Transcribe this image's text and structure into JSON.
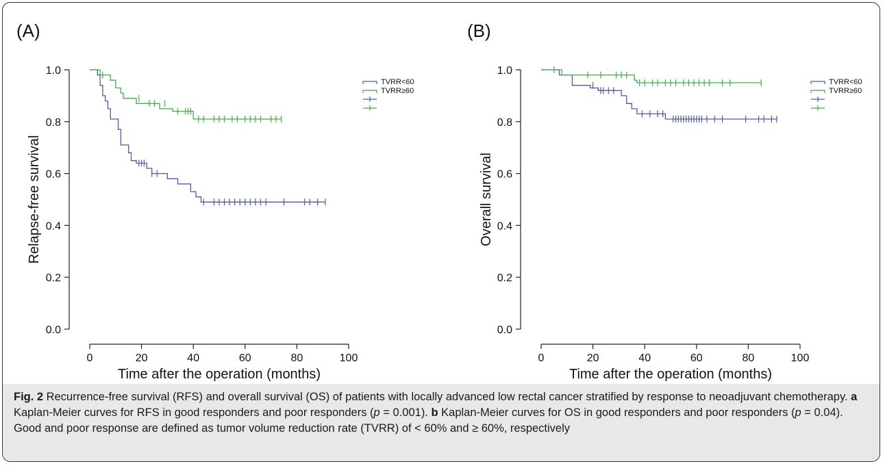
{
  "figure": {
    "caption": {
      "fig_label": "Fig. 2",
      "part1": " Recurrence-free survival (RFS) and overall survival (OS) of patients with locally advanced low rectal cancer stratified by response to neoadjuvant chemotherapy. ",
      "a_label": "a",
      "part2": " Kaplan-Meier curves for RFS in good responders and poor responders (",
      "p_sym1": "p",
      "p_val1": " = 0.001). ",
      "b_label": "b",
      "part3": " Kaplan-Meier curves for OS in good responders and poor responders (",
      "p_sym2": "p",
      "p_val2": " = 0.04). Good and poor response are defined as tumor volume reduction rate (TVRR) of < 60% and ≥ 60%, respectively"
    }
  },
  "colors": {
    "blue": "#4a5aa8",
    "green": "#3cb043",
    "axis": "#222222"
  },
  "chart_data": [
    {
      "type": "line",
      "panel_label": "(A)",
      "title": "",
      "xlabel": "Time after the operation (months)",
      "ylabel": "Relapse-free survival",
      "xlim": [
        0,
        100
      ],
      "ylim": [
        0,
        1
      ],
      "x_ticks": [
        0,
        20,
        40,
        60,
        80,
        100
      ],
      "y_ticks": [
        "0.0",
        "0.2",
        "0.4",
        "0.6",
        "0.8",
        "1.0"
      ],
      "grid": false,
      "legend": {
        "placement": "top-right",
        "entries": [
          "TVRR<60",
          "TVRR≥60",
          "",
          ""
        ]
      },
      "series": [
        {
          "name": "TVRR<60",
          "color": "blue",
          "steps": [
            [
              0,
              1.0
            ],
            [
              3,
              1.0
            ],
            [
              3,
              0.98
            ],
            [
              4,
              0.98
            ],
            [
              4,
              0.94
            ],
            [
              5,
              0.94
            ],
            [
              5,
              0.9
            ],
            [
              6,
              0.9
            ],
            [
              6,
              0.88
            ],
            [
              7,
              0.88
            ],
            [
              7,
              0.85
            ],
            [
              8,
              0.85
            ],
            [
              8,
              0.81
            ],
            [
              11,
              0.81
            ],
            [
              11,
              0.77
            ],
            [
              12,
              0.77
            ],
            [
              12,
              0.71
            ],
            [
              15,
              0.71
            ],
            [
              15,
              0.68
            ],
            [
              16,
              0.68
            ],
            [
              16,
              0.65
            ],
            [
              18,
              0.65
            ],
            [
              18,
              0.64
            ],
            [
              22,
              0.64
            ],
            [
              22,
              0.62
            ],
            [
              24,
              0.62
            ],
            [
              24,
              0.6
            ],
            [
              30,
              0.6
            ],
            [
              30,
              0.58
            ],
            [
              34,
              0.58
            ],
            [
              34,
              0.56
            ],
            [
              39,
              0.56
            ],
            [
              39,
              0.53
            ],
            [
              41,
              0.53
            ],
            [
              41,
              0.51
            ],
            [
              43,
              0.51
            ],
            [
              43,
              0.49
            ],
            [
              91,
              0.49
            ]
          ],
          "censors": [
            [
              19,
              0.64
            ],
            [
              20,
              0.64
            ],
            [
              21,
              0.64
            ],
            [
              24,
              0.6
            ],
            [
              26,
              0.6
            ],
            [
              44,
              0.49
            ],
            [
              48,
              0.49
            ],
            [
              50,
              0.49
            ],
            [
              52,
              0.49
            ],
            [
              54,
              0.49
            ],
            [
              56,
              0.49
            ],
            [
              58,
              0.49
            ],
            [
              60,
              0.49
            ],
            [
              62,
              0.49
            ],
            [
              64,
              0.49
            ],
            [
              66,
              0.49
            ],
            [
              68,
              0.49
            ],
            [
              75,
              0.49
            ],
            [
              83,
              0.49
            ],
            [
              85,
              0.49
            ],
            [
              88,
              0.49
            ],
            [
              91,
              0.49
            ]
          ]
        },
        {
          "name": "TVRR≥60",
          "color": "green",
          "steps": [
            [
              0,
              1.0
            ],
            [
              4,
              1.0
            ],
            [
              4,
              0.98
            ],
            [
              8,
              0.98
            ],
            [
              8,
              0.96
            ],
            [
              10,
              0.96
            ],
            [
              10,
              0.93
            ],
            [
              12,
              0.93
            ],
            [
              12,
              0.91
            ],
            [
              13,
              0.91
            ],
            [
              13,
              0.89
            ],
            [
              18,
              0.89
            ],
            [
              18,
              0.87
            ],
            [
              27,
              0.87
            ],
            [
              27,
              0.85
            ],
            [
              32,
              0.85
            ],
            [
              32,
              0.84
            ],
            [
              40,
              0.84
            ],
            [
              40,
              0.81
            ],
            [
              74,
              0.81
            ]
          ],
          "censors": [
            [
              5,
              0.98
            ],
            [
              19,
              0.89
            ],
            [
              23,
              0.87
            ],
            [
              25,
              0.87
            ],
            [
              29,
              0.87
            ],
            [
              34,
              0.84
            ],
            [
              37,
              0.84
            ],
            [
              38,
              0.84
            ],
            [
              39,
              0.84
            ],
            [
              42,
              0.81
            ],
            [
              44,
              0.81
            ],
            [
              48,
              0.81
            ],
            [
              50,
              0.81
            ],
            [
              52,
              0.81
            ],
            [
              55,
              0.81
            ],
            [
              57,
              0.81
            ],
            [
              60,
              0.81
            ],
            [
              62,
              0.81
            ],
            [
              64,
              0.81
            ],
            [
              66,
              0.81
            ],
            [
              70,
              0.81
            ],
            [
              72,
              0.81
            ],
            [
              74,
              0.81
            ]
          ]
        }
      ]
    },
    {
      "type": "line",
      "panel_label": "(B)",
      "title": "",
      "xlabel": "Time after the operation (months)",
      "ylabel": "Overall survival",
      "xlim": [
        0,
        100
      ],
      "ylim": [
        0,
        1
      ],
      "x_ticks": [
        0,
        20,
        40,
        60,
        80,
        100
      ],
      "y_ticks": [
        "0.0",
        "0.2",
        "0.4",
        "0.6",
        "0.8",
        "1.0"
      ],
      "grid": false,
      "legend": {
        "placement": "top-right",
        "entries": [
          "TVRR<60",
          "TVRR≥60",
          "",
          ""
        ]
      },
      "series": [
        {
          "name": "TVRR<60",
          "color": "blue",
          "steps": [
            [
              0,
              1.0
            ],
            [
              7,
              1.0
            ],
            [
              7,
              0.98
            ],
            [
              12,
              0.98
            ],
            [
              12,
              0.94
            ],
            [
              19,
              0.94
            ],
            [
              19,
              0.93
            ],
            [
              22,
              0.93
            ],
            [
              22,
              0.92
            ],
            [
              31,
              0.92
            ],
            [
              31,
              0.9
            ],
            [
              33,
              0.9
            ],
            [
              33,
              0.87
            ],
            [
              35,
              0.87
            ],
            [
              35,
              0.85
            ],
            [
              37,
              0.85
            ],
            [
              37,
              0.83
            ],
            [
              48,
              0.83
            ],
            [
              48,
              0.81
            ],
            [
              91,
              0.81
            ]
          ],
          "censors": [
            [
              20,
              0.94
            ],
            [
              23,
              0.92
            ],
            [
              24,
              0.92
            ],
            [
              26,
              0.92
            ],
            [
              28,
              0.92
            ],
            [
              39,
              0.83
            ],
            [
              42,
              0.83
            ],
            [
              45,
              0.83
            ],
            [
              47,
              0.83
            ],
            [
              51,
              0.81
            ],
            [
              52,
              0.81
            ],
            [
              53,
              0.81
            ],
            [
              54,
              0.81
            ],
            [
              55,
              0.81
            ],
            [
              56,
              0.81
            ],
            [
              57,
              0.81
            ],
            [
              58,
              0.81
            ],
            [
              59,
              0.81
            ],
            [
              60,
              0.81
            ],
            [
              61,
              0.81
            ],
            [
              62,
              0.81
            ],
            [
              64,
              0.81
            ],
            [
              67,
              0.81
            ],
            [
              70,
              0.81
            ],
            [
              79,
              0.81
            ],
            [
              84,
              0.81
            ],
            [
              86,
              0.81
            ],
            [
              89,
              0.81
            ],
            [
              91,
              0.81
            ]
          ]
        },
        {
          "name": "TVRR≥60",
          "color": "green",
          "steps": [
            [
              0,
              1.0
            ],
            [
              8,
              1.0
            ],
            [
              8,
              0.98
            ],
            [
              36,
              0.98
            ],
            [
              36,
              0.96
            ],
            [
              37,
              0.96
            ],
            [
              37,
              0.95
            ],
            [
              85,
              0.95
            ]
          ],
          "censors": [
            [
              5,
              1.0
            ],
            [
              18,
              0.98
            ],
            [
              23,
              0.98
            ],
            [
              29,
              0.98
            ],
            [
              31,
              0.98
            ],
            [
              33,
              0.98
            ],
            [
              38,
              0.95
            ],
            [
              40,
              0.95
            ],
            [
              43,
              0.95
            ],
            [
              45,
              0.95
            ],
            [
              48,
              0.95
            ],
            [
              50,
              0.95
            ],
            [
              52,
              0.95
            ],
            [
              55,
              0.95
            ],
            [
              57,
              0.95
            ],
            [
              59,
              0.95
            ],
            [
              61,
              0.95
            ],
            [
              63,
              0.95
            ],
            [
              65,
              0.95
            ],
            [
              70,
              0.95
            ],
            [
              73,
              0.95
            ],
            [
              85,
              0.95
            ]
          ]
        }
      ]
    }
  ]
}
